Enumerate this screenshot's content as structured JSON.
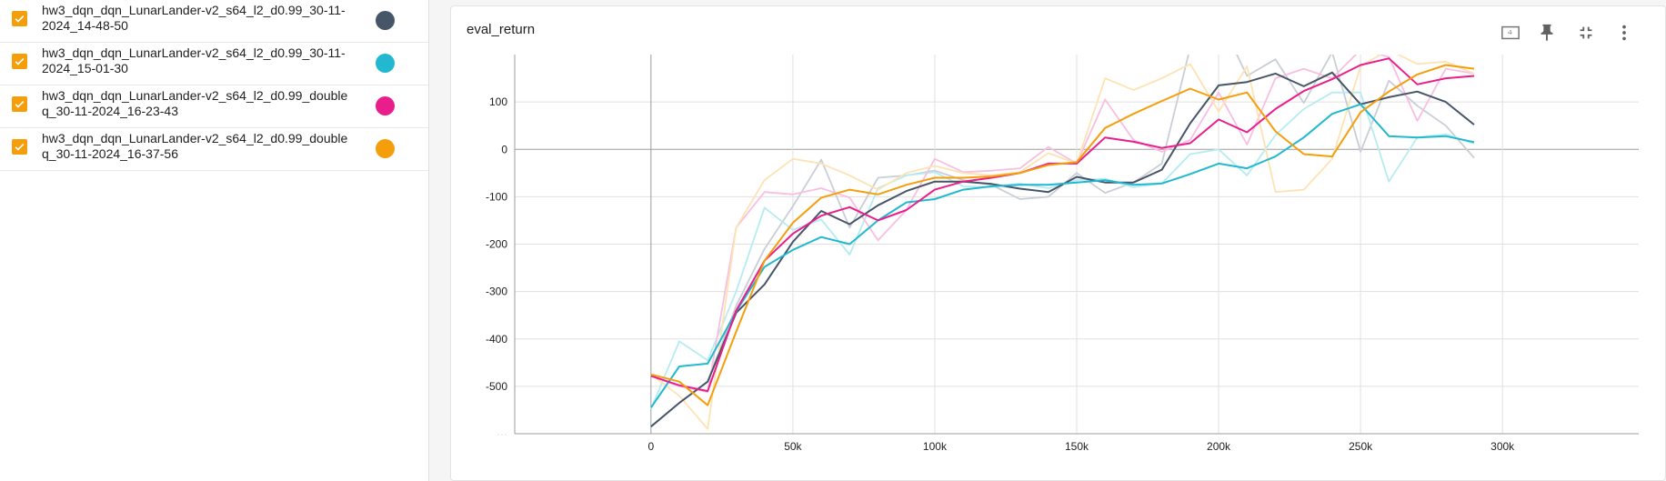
{
  "runs": [
    {
      "name": "hw3_dqn_dqn_LunarLander-v2_s64_l2_d0.99_30-11-2024_14-48-50",
      "color": "#475569"
    },
    {
      "name": "hw3_dqn_dqn_LunarLander-v2_s64_l2_d0.99_30-11-2024_15-01-30",
      "color": "#22b8cf"
    },
    {
      "name": "hw3_dqn_dqn_LunarLander-v2_s64_l2_d0.99_doubleq_30-11-2024_16-23-43",
      "color": "#e91e8c"
    },
    {
      "name": "hw3_dqn_dqn_LunarLander-v2_s64_l2_d0.99_doubleq_30-11-2024_16-37-56",
      "color": "#f59e0b"
    }
  ],
  "toolbar": {
    "fit_icon": "fit-domain-icon",
    "pin_icon": "pin-icon",
    "collapse_icon": "collapse-icon",
    "more_icon": "more-vert-icon"
  },
  "chart_data": {
    "type": "line",
    "title": "eval_return",
    "xlabel": "",
    "ylabel": "",
    "x_ticks": [
      "0",
      "50k",
      "100k",
      "150k",
      "200k",
      "250k",
      "300k"
    ],
    "x_tick_values": [
      0,
      50000,
      100000,
      150000,
      200000,
      250000,
      300000
    ],
    "y_ticks": [
      "100",
      "0",
      "-100",
      "-200",
      "-300",
      "-400",
      "-500"
    ],
    "y_tick_values": [
      100,
      0,
      -100,
      -200,
      -300,
      -400,
      -500
    ],
    "xlim": [
      -48000,
      348000
    ],
    "ylim": [
      -600,
      200
    ],
    "grid": true,
    "x": [
      0,
      10000,
      20000,
      30000,
      40000,
      50000,
      60000,
      70000,
      80000,
      90000,
      100000,
      110000,
      120000,
      130000,
      140000,
      150000,
      160000,
      170000,
      180000,
      190000,
      200000,
      210000,
      220000,
      230000,
      240000,
      250000,
      260000,
      270000,
      280000,
      290000
    ],
    "series": [
      {
        "values": [
          -585,
          -535,
          -490,
          -345,
          -285,
          -195,
          -130,
          -158,
          -118,
          -88,
          -68,
          -68,
          -73,
          -83,
          -90,
          -58,
          -70,
          -70,
          -43,
          55,
          135,
          142,
          160,
          133,
          162,
          95,
          110,
          122,
          100,
          52
        ],
        "raw": [
          -585,
          -535,
          -490,
          -330,
          -210,
          -120,
          -22,
          -165,
          -60,
          -55,
          -45,
          -65,
          -75,
          -105,
          -100,
          -50,
          -92,
          -70,
          -30,
          215,
          280,
          155,
          190,
          98,
          205,
          -5,
          145,
          92,
          50,
          -18
        ],
        "smoothed_color": "#475569",
        "raw_color": "#c9ced6"
      },
      {
        "values": [
          -545,
          -458,
          -452,
          -342,
          -248,
          -212,
          -185,
          -200,
          -150,
          -112,
          -105,
          -85,
          -78,
          -75,
          -75,
          -70,
          -65,
          -75,
          -72,
          -52,
          -30,
          -40,
          -15,
          25,
          75,
          95,
          28,
          25,
          28,
          15
        ],
        "raw": [
          -548,
          -405,
          -445,
          -300,
          -123,
          -170,
          -148,
          -222,
          -82,
          -55,
          -48,
          -78,
          -80,
          -72,
          -82,
          -65,
          -62,
          -80,
          -72,
          -10,
          0,
          -55,
          30,
          85,
          120,
          120,
          -68,
          25,
          32,
          12
        ],
        "smoothed_color": "#22b8cf",
        "raw_color": "#b5ecf3"
      },
      {
        "values": [
          -478,
          -498,
          -510,
          -340,
          -235,
          -178,
          -140,
          -122,
          -150,
          -128,
          -85,
          -68,
          -60,
          -50,
          -30,
          -30,
          25,
          16,
          3,
          13,
          63,
          36,
          85,
          123,
          148,
          178,
          192,
          137,
          150,
          155
        ],
        "raw": [
          -478,
          -500,
          -512,
          -165,
          -90,
          -95,
          -82,
          -102,
          -192,
          -128,
          -20,
          -48,
          -45,
          -40,
          5,
          -30,
          105,
          20,
          -5,
          20,
          120,
          10,
          150,
          170,
          150,
          210,
          195,
          60,
          170,
          160
        ],
        "smoothed_color": "#e91e8c",
        "raw_color": "#f8bfe0"
      },
      {
        "values": [
          -475,
          -490,
          -540,
          -385,
          -235,
          -155,
          -102,
          -85,
          -95,
          -75,
          -60,
          -60,
          -57,
          -50,
          -33,
          -27,
          45,
          75,
          102,
          128,
          105,
          120,
          38,
          -10,
          -15,
          78,
          122,
          158,
          178,
          170
        ],
        "raw": [
          -475,
          -520,
          -590,
          -165,
          -65,
          -20,
          -30,
          -55,
          -85,
          -50,
          -35,
          -50,
          -55,
          -48,
          -8,
          -30,
          150,
          125,
          150,
          180,
          80,
          175,
          -90,
          -85,
          -20,
          175,
          210,
          180,
          185,
          160
        ],
        "smoothed_color": "#f59e0b",
        "raw_color": "#fde3b3"
      }
    ]
  }
}
